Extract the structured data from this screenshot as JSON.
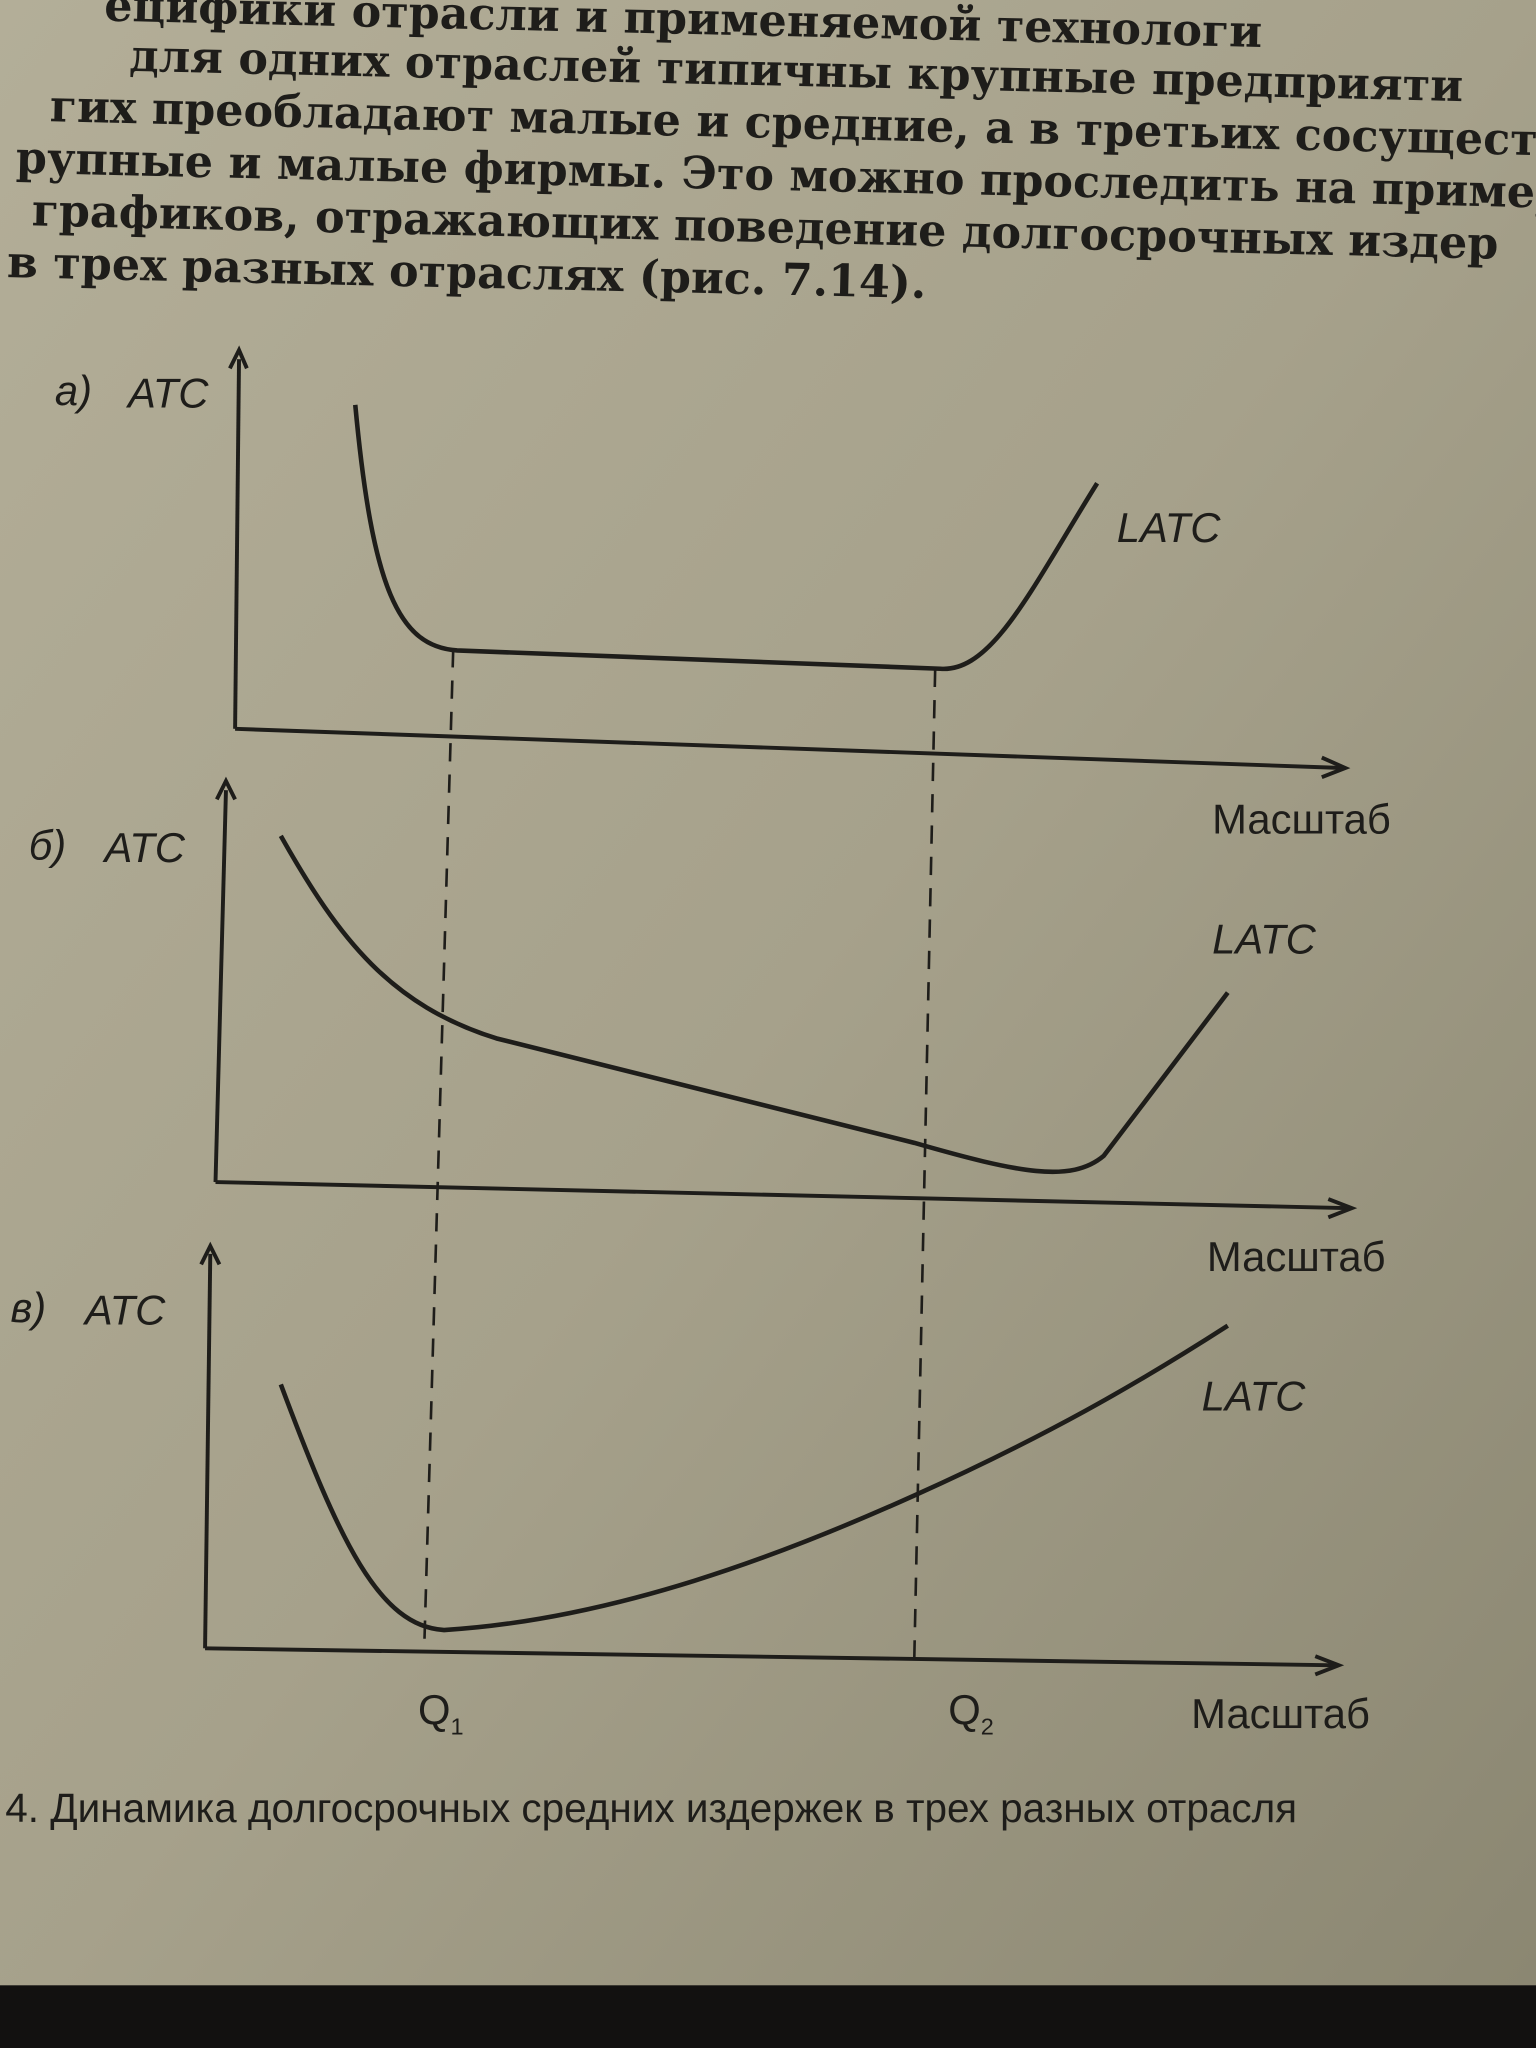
{
  "body_text": {
    "lines": [
      "ецифики отрасли и применяемой технологи",
      "для одних отраслей типичны крупные предприяти",
      "гих преобладают малые и средние, а в третьих сосуществ",
      "рупные и малые фирмы. Это можно проследить на пример",
      "графиков, отражающих поведение долгосрочных издер",
      "в трех разных отраслях (рис. 7.14)."
    ]
  },
  "figure": {
    "panels": [
      {
        "label": "а)",
        "y_axis_label": "ATC",
        "curve_label": "LATC",
        "x_axis_label": "Масштаб"
      },
      {
        "label": "б)",
        "y_axis_label": "ATC",
        "curve_label": "LATC",
        "x_axis_label": "Масштаб"
      },
      {
        "label": "в)",
        "y_axis_label": "ATC",
        "curve_label": "LATC",
        "x_axis_label": "Масштаб"
      }
    ],
    "q_labels": [
      {
        "main": "Q",
        "sub": "1"
      },
      {
        "main": "Q",
        "sub": "2"
      }
    ],
    "caption": "4. Динамика долгосрочных средних издержек в трех разных отрасля"
  }
}
